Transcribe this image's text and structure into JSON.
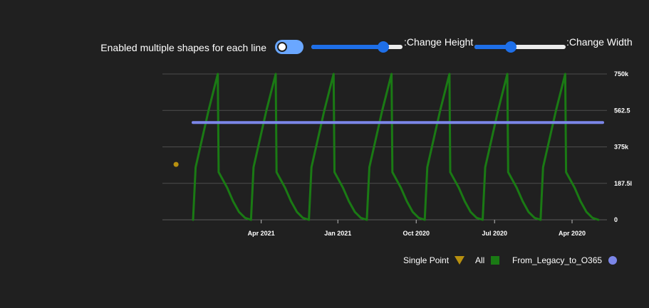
{
  "controls": {
    "toggle_label": "Enabled multiple shapes for each line",
    "toggle_on": false,
    "height_label": ":Change Height",
    "height_value": 0.83,
    "width_label": ":Change Width",
    "width_value": 0.38
  },
  "chart_data": {
    "type": "line",
    "title": "",
    "xlabel": "",
    "ylabel": "",
    "x_axis_reversed": true,
    "x_ticks": [
      "Apr 2021",
      "Jan 2021",
      "Oct 2020",
      "Jul 2020",
      "Apr 2020"
    ],
    "y_ticks": [
      "0",
      "187.5l",
      "375k",
      "562.5",
      "750k"
    ],
    "ylim": [
      0,
      750000
    ],
    "grid": true,
    "legend_position": "bottom-right",
    "series": [
      {
        "name": "Single Point",
        "marker": "triangle-down",
        "color": "#b8900f",
        "points": [
          [
            "2021-07-10",
            285000
          ]
        ]
      },
      {
        "name": "All",
        "marker": "square",
        "color": "#1a7a14",
        "repeat_period_days": 68,
        "points": [
          [
            "2020-03-01",
            0
          ],
          [
            "2020-03-08",
            10000
          ],
          [
            "2020-03-15",
            40000
          ],
          [
            "2020-03-22",
            95000
          ],
          [
            "2020-03-29",
            165000
          ],
          [
            "2020-04-08",
            245000
          ],
          [
            "2020-04-09",
            750000
          ],
          [
            "2020-04-20",
            560000
          ],
          [
            "2020-05-05",
            270000
          ],
          [
            "2020-05-08",
            0
          ]
        ]
      },
      {
        "name": "From_Legacy_to_O365",
        "marker": "circle",
        "color": "#7b86e8",
        "points": [
          [
            "2021-06-20",
            500000
          ],
          [
            "2020-02-25",
            500000
          ]
        ]
      }
    ]
  }
}
